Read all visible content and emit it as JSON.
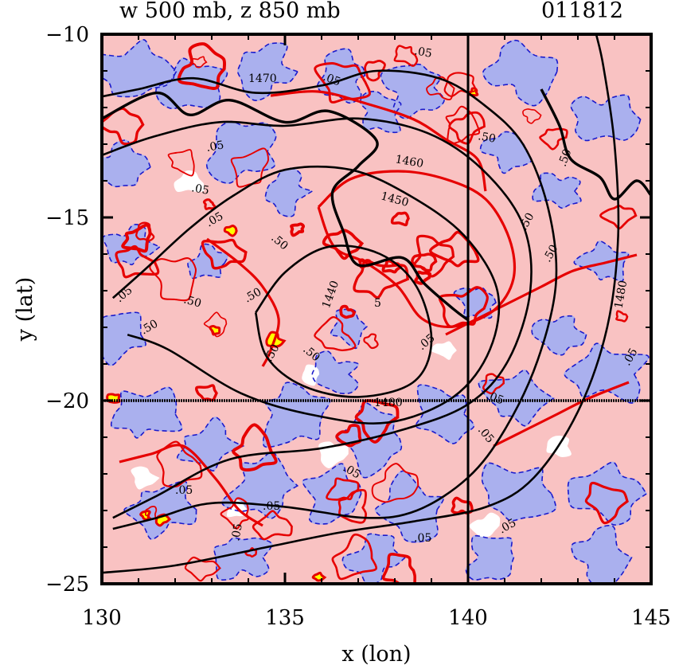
{
  "chart_data": {
    "type": "contour",
    "title_left": "w 500 mb, z 850 mb",
    "title_right": "011812",
    "xlabel": "x (lon)",
    "ylabel": "y (lat)",
    "xlim": [
      130,
      145
    ],
    "ylim": [
      -25,
      -10
    ],
    "xticks": [
      "130",
      "135",
      "140",
      "145"
    ],
    "yticks": [
      "-10",
      "-15",
      "-20",
      "-25"
    ],
    "colors": {
      "positive_fill": "#f9c2c2",
      "negative_fill": "#aab0ee",
      "high_fill": "#ffff00",
      "w_positive_line": "#e60000",
      "w_negative_line": "#1a1acc",
      "height_line": "#000000"
    },
    "crosshair": {
      "lon": 140,
      "lat": -20
    },
    "height_contours": [
      {
        "label": "1480",
        "points": [
          [
            130.0,
            -24.7
          ],
          [
            132.0,
            -24.5
          ],
          [
            134.5,
            -24.0
          ],
          [
            136.5,
            -23.6
          ],
          [
            138.5,
            -23.3
          ],
          [
            140.5,
            -22.9
          ],
          [
            141.8,
            -22.1
          ],
          [
            143.0,
            -20.3
          ],
          [
            143.8,
            -18.0
          ],
          [
            144.1,
            -15.5
          ],
          [
            144.0,
            -13.0
          ],
          [
            143.7,
            -10.9
          ],
          [
            143.5,
            -10.0
          ]
        ]
      },
      {
        "label": "1470",
        "points": [
          [
            130.0,
            -11.7
          ],
          [
            131.0,
            -11.5
          ],
          [
            132.5,
            -11.2
          ],
          [
            134.2,
            -11.6
          ],
          [
            136.0,
            -11.4
          ],
          [
            137.5,
            -11.0
          ],
          [
            139.2,
            -11.2
          ],
          [
            140.4,
            -11.9
          ],
          [
            141.5,
            -13.0
          ],
          [
            142.2,
            -14.8
          ],
          [
            142.4,
            -16.8
          ],
          [
            141.9,
            -18.9
          ],
          [
            141.0,
            -20.8
          ],
          [
            140.0,
            -22.1
          ],
          [
            138.6,
            -23.0
          ],
          [
            137.2,
            -23.2
          ],
          [
            135.0,
            -22.9
          ],
          [
            133.0,
            -22.8
          ],
          [
            131.5,
            -23.2
          ],
          [
            130.3,
            -23.5
          ]
        ]
      },
      {
        "label": "1460",
        "points": [
          [
            130.0,
            -13.3
          ],
          [
            131.4,
            -12.8
          ],
          [
            133.2,
            -12.4
          ],
          [
            135.0,
            -12.5
          ],
          [
            137.0,
            -12.3
          ],
          [
            138.9,
            -12.7
          ],
          [
            140.4,
            -13.7
          ],
          [
            141.5,
            -15.2
          ],
          [
            141.7,
            -17.0
          ],
          [
            141.1,
            -18.9
          ],
          [
            140.0,
            -20.1
          ],
          [
            138.2,
            -20.8
          ],
          [
            136.0,
            -21.3
          ],
          [
            133.5,
            -21.6
          ],
          [
            131.5,
            -22.6
          ],
          [
            130.3,
            -23.2
          ]
        ]
      },
      {
        "label": "1450",
        "points": [
          [
            130.3,
            -17.2
          ],
          [
            131.2,
            -16.4
          ],
          [
            132.4,
            -15.3
          ],
          [
            133.6,
            -14.4
          ],
          [
            135.0,
            -13.7
          ],
          [
            136.8,
            -13.7
          ],
          [
            138.4,
            -14.4
          ],
          [
            139.9,
            -15.5
          ],
          [
            140.8,
            -17.0
          ],
          [
            140.6,
            -18.6
          ],
          [
            139.6,
            -19.9
          ],
          [
            137.8,
            -20.6
          ],
          [
            135.8,
            -20.4
          ],
          [
            133.8,
            -19.8
          ],
          [
            131.8,
            -18.6
          ],
          [
            130.7,
            -18.2
          ]
        ]
      },
      {
        "label": "1440",
        "points": [
          [
            134.2,
            -17.6
          ],
          [
            135.0,
            -16.5
          ],
          [
            136.2,
            -15.8
          ],
          [
            137.6,
            -16.0
          ],
          [
            138.6,
            -16.9
          ],
          [
            139.0,
            -18.4
          ],
          [
            138.5,
            -19.5
          ],
          [
            137.0,
            -19.9
          ],
          [
            135.5,
            -19.6
          ],
          [
            134.5,
            -18.8
          ],
          [
            134.2,
            -17.6
          ]
        ]
      }
    ],
    "w_contour_labels": [
      ".05",
      ".50",
      "1470",
      "1460",
      "1450",
      "1440",
      "1480",
      "5"
    ]
  }
}
